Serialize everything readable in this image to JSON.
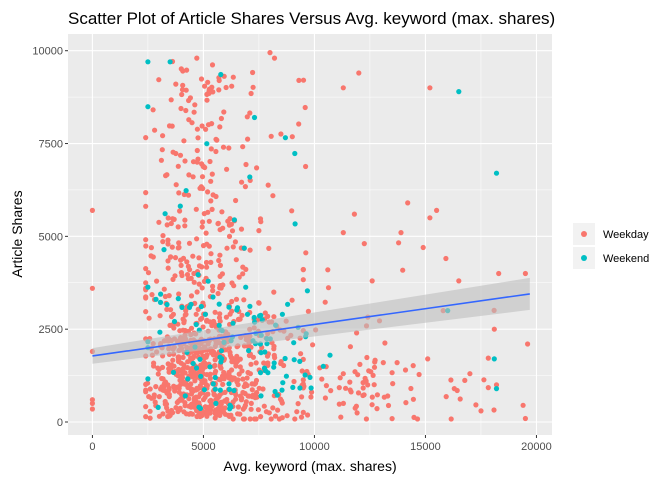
{
  "chart_data": {
    "type": "scatter",
    "title": "Scatter Plot of Article Shares Versus Avg. keyword (max. shares)",
    "xlabel": "Avg. keyword (max. shares)",
    "ylabel": "Article Shares",
    "xlim": [
      -1100,
      20700
    ],
    "ylim": [
      -350,
      10450
    ],
    "x_ticks": [
      0,
      5000,
      10000,
      15000,
      20000
    ],
    "x_tick_labels": [
      "0",
      "5000",
      "10000",
      "15000",
      "20000"
    ],
    "y_ticks": [
      0,
      2500,
      5000,
      7500,
      10000
    ],
    "y_tick_labels": [
      "0",
      "2500",
      "5000",
      "7500",
      "10000"
    ],
    "grid": true,
    "panel_background": "#EBEBEB",
    "legend_position": "right",
    "series": [
      {
        "name": "Weekday",
        "color": "#F8766D"
      },
      {
        "name": "Weekend",
        "color": "#00BFC4"
      }
    ],
    "trend_line": {
      "color": "#3366FF",
      "band_color": "#BEBEBE",
      "x": [
        0,
        19700
      ],
      "y": [
        1780,
        3450
      ],
      "band_lower": [
        1570,
        3020
      ],
      "band_upper": [
        1990,
        3880
      ]
    },
    "point_clouds": [
      {
        "series": 0,
        "n": 520,
        "x_mean": 4700,
        "x_sd": 1100,
        "y_mode": 1300,
        "y_spread": 1500,
        "x_min": 2400,
        "x_max": 10000,
        "y_max": 9500
      },
      {
        "series": 0,
        "n": 240,
        "x_mean": 6800,
        "x_sd": 1700,
        "y_mode": 1600,
        "y_spread": 2200,
        "x_min": 2600,
        "x_max": 11000,
        "y_max": 9500
      },
      {
        "series": 0,
        "n": 150,
        "x_mean": 4800,
        "x_sd": 1400,
        "y_mode": 4000,
        "y_spread": 2400,
        "x_min": 2400,
        "x_max": 10000,
        "y_max": 9800
      },
      {
        "series": 0,
        "n": 90,
        "x_mean": 12000,
        "x_sd": 2800,
        "y_mode": 900,
        "y_spread": 1300,
        "x_min": 9500,
        "x_max": 19500,
        "y_max": 5000
      },
      {
        "series": 1,
        "n": 75,
        "x_mean": 5200,
        "x_sd": 1500,
        "y_mode": 2000,
        "y_spread": 2200,
        "x_min": 2500,
        "x_max": 10000,
        "y_max": 9500
      },
      {
        "series": 1,
        "n": 45,
        "x_mean": 8000,
        "x_sd": 1200,
        "y_mode": 1800,
        "y_spread": 1800,
        "x_min": 3000,
        "x_max": 10500,
        "y_max": 8000
      }
    ],
    "points": [
      {
        "x": 0,
        "y": 5700,
        "s": 0
      },
      {
        "x": 0,
        "y": 3600,
        "s": 0
      },
      {
        "x": 0,
        "y": 1900,
        "s": 0
      },
      {
        "x": 0,
        "y": 600,
        "s": 0
      },
      {
        "x": 0,
        "y": 500,
        "s": 0
      },
      {
        "x": 0,
        "y": 350,
        "s": 0
      },
      {
        "x": 2500,
        "y": 9700,
        "s": 1
      },
      {
        "x": 3500,
        "y": 9700,
        "s": 1
      },
      {
        "x": 4700,
        "y": 9800,
        "s": 0
      },
      {
        "x": 8000,
        "y": 9950,
        "s": 0
      },
      {
        "x": 8200,
        "y": 9800,
        "s": 0
      },
      {
        "x": 9300,
        "y": 9200,
        "s": 0
      },
      {
        "x": 11300,
        "y": 9000,
        "s": 0
      },
      {
        "x": 12000,
        "y": 9400,
        "s": 0
      },
      {
        "x": 15200,
        "y": 9000,
        "s": 0
      },
      {
        "x": 16500,
        "y": 8900,
        "s": 1
      },
      {
        "x": 18200,
        "y": 6700,
        "s": 1
      },
      {
        "x": 15200,
        "y": 5500,
        "s": 0
      },
      {
        "x": 15500,
        "y": 5700,
        "s": 0
      },
      {
        "x": 14200,
        "y": 5900,
        "s": 0
      },
      {
        "x": 13900,
        "y": 5100,
        "s": 0
      },
      {
        "x": 11800,
        "y": 5600,
        "s": 0
      },
      {
        "x": 11300,
        "y": 5100,
        "s": 0
      },
      {
        "x": 14900,
        "y": 4700,
        "s": 0
      },
      {
        "x": 19500,
        "y": 4000,
        "s": 0
      },
      {
        "x": 18300,
        "y": 4000,
        "s": 0
      },
      {
        "x": 16500,
        "y": 3800,
        "s": 0
      },
      {
        "x": 12600,
        "y": 3800,
        "s": 0
      },
      {
        "x": 10600,
        "y": 4100,
        "s": 0
      },
      {
        "x": 15800,
        "y": 3000,
        "s": 0
      },
      {
        "x": 16000,
        "y": 3000,
        "s": 1
      },
      {
        "x": 18100,
        "y": 2500,
        "s": 0
      },
      {
        "x": 19600,
        "y": 2100,
        "s": 0
      },
      {
        "x": 18100,
        "y": 1700,
        "s": 1
      },
      {
        "x": 17000,
        "y": 1300,
        "s": 0
      },
      {
        "x": 18200,
        "y": 1000,
        "s": 0
      },
      {
        "x": 18200,
        "y": 900,
        "s": 1
      },
      {
        "x": 17500,
        "y": 300,
        "s": 0
      },
      {
        "x": 19400,
        "y": 450,
        "s": 0
      },
      {
        "x": 16300,
        "y": 900,
        "s": 0
      },
      {
        "x": 15100,
        "y": 1700,
        "s": 0
      },
      {
        "x": 14100,
        "y": 1400,
        "s": 0
      },
      {
        "x": 13100,
        "y": 1600,
        "s": 0
      },
      {
        "x": 12400,
        "y": 1000,
        "s": 0
      },
      {
        "x": 13300,
        "y": 700,
        "s": 0
      },
      {
        "x": 10700,
        "y": 1800,
        "s": 1
      },
      {
        "x": 10400,
        "y": 1500,
        "s": 1
      },
      {
        "x": 9600,
        "y": 2300,
        "s": 1
      },
      {
        "x": 9800,
        "y": 1200,
        "s": 1
      },
      {
        "x": 11300,
        "y": 1300,
        "s": 0
      },
      {
        "x": 11900,
        "y": 2400,
        "s": 0
      }
    ]
  }
}
